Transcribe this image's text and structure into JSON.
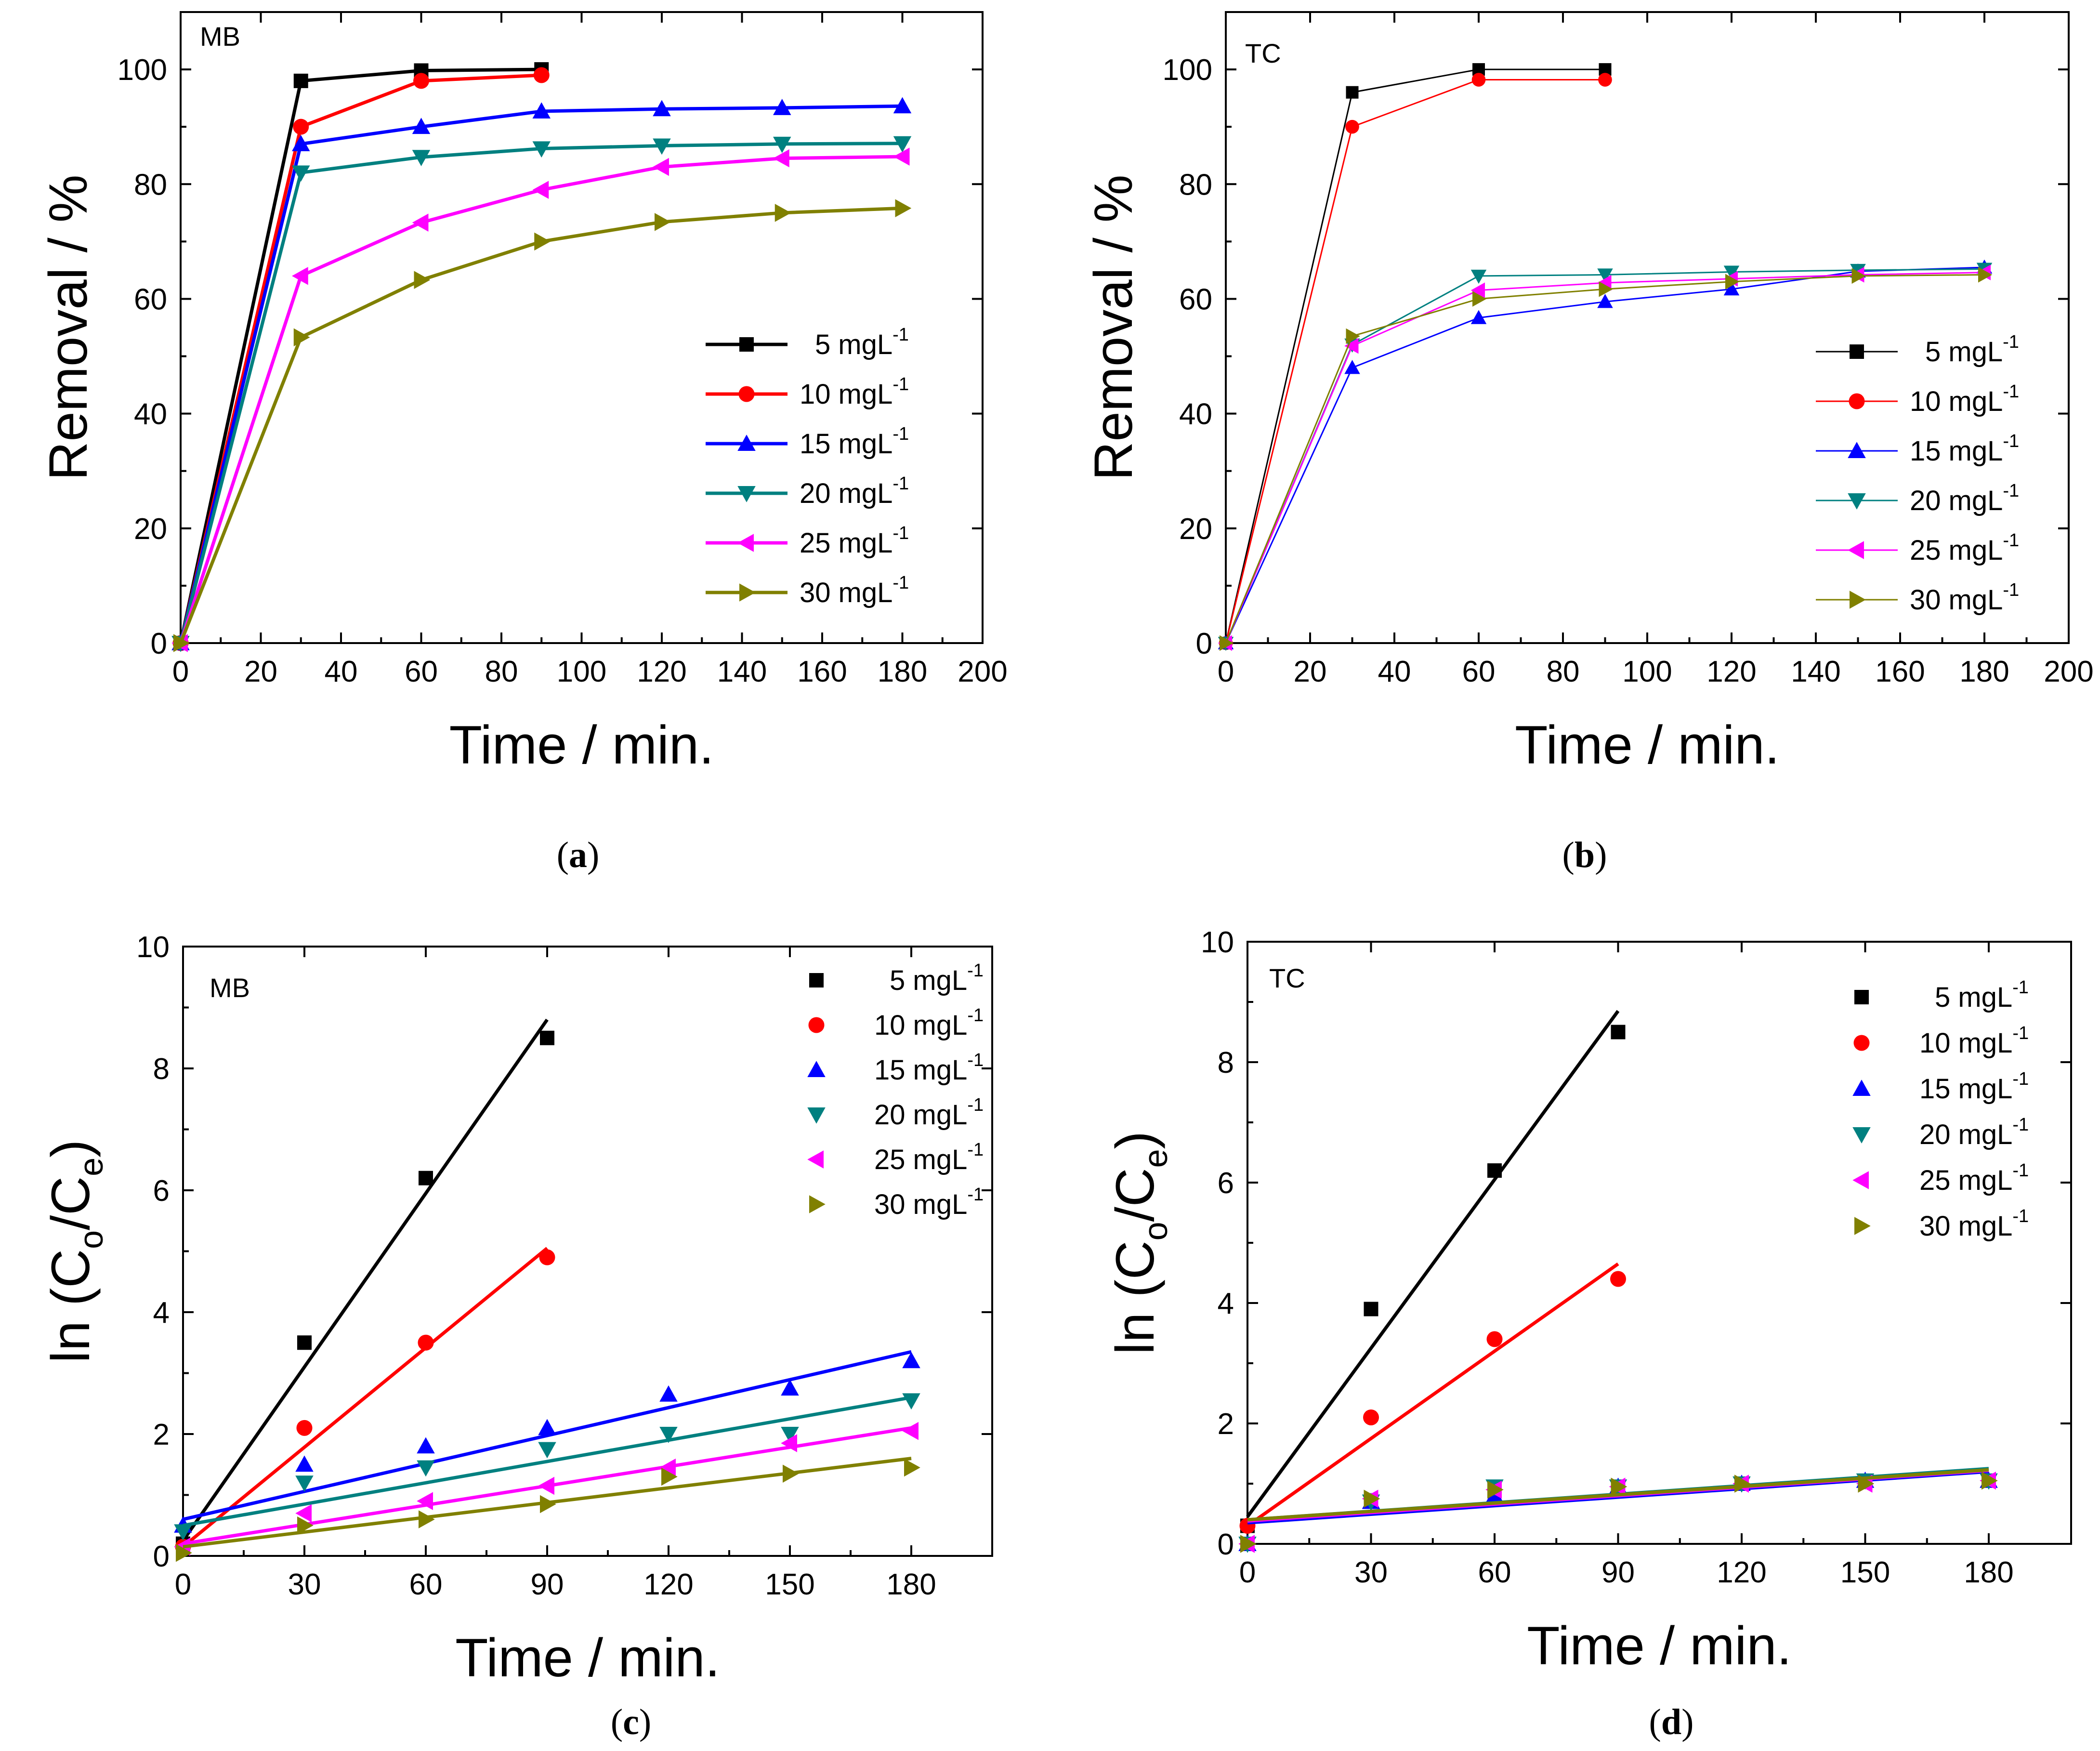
{
  "colors": {
    "5": "#000000",
    "10": "#ff0000",
    "15": "#0000ff",
    "20": "#008080",
    "25": "#ff00ff",
    "30": "#808000"
  },
  "legend_unit": "mgL",
  "legend_exp": "-1",
  "chart_data": [
    {
      "id": "a",
      "type": "line",
      "caption_letter": "a",
      "tag": "MB",
      "xlabel": "Time / min.",
      "ylabel": "Removal / %",
      "xlim": [
        0,
        200
      ],
      "ylim": [
        0,
        110
      ],
      "xticks": [
        0,
        20,
        40,
        60,
        80,
        100,
        120,
        140,
        160,
        180,
        200
      ],
      "yticks": [
        0,
        20,
        40,
        60,
        80,
        100
      ],
      "line_width": "thick",
      "legend_position": "lower-right",
      "series": [
        {
          "name": "5",
          "marker": "square",
          "x": [
            0,
            30,
            60,
            90
          ],
          "y": [
            0,
            98,
            99.8,
            100
          ]
        },
        {
          "name": "10",
          "marker": "circle",
          "x": [
            0,
            30,
            60,
            90
          ],
          "y": [
            0,
            90,
            98,
            99
          ]
        },
        {
          "name": "15",
          "marker": "triangle-up",
          "x": [
            0,
            30,
            60,
            90,
            120,
            150,
            180
          ],
          "y": [
            0,
            87,
            90,
            92.7,
            93.1,
            93.3,
            93.6
          ]
        },
        {
          "name": "20",
          "marker": "triangle-down",
          "x": [
            0,
            30,
            60,
            90,
            120,
            150,
            180
          ],
          "y": [
            0,
            82,
            84.7,
            86.2,
            86.7,
            87,
            87.1
          ]
        },
        {
          "name": "25",
          "marker": "triangle-left",
          "x": [
            0,
            30,
            60,
            90,
            120,
            150,
            180
          ],
          "y": [
            0,
            64,
            73.3,
            79,
            83,
            84.5,
            84.8
          ]
        },
        {
          "name": "30",
          "marker": "triangle-right",
          "x": [
            0,
            30,
            60,
            90,
            120,
            150,
            180
          ],
          "y": [
            0,
            53.3,
            63.3,
            70,
            73.4,
            75,
            75.8
          ]
        }
      ]
    },
    {
      "id": "b",
      "type": "line",
      "caption_letter": "b",
      "tag": "TC",
      "xlabel": "Time / min.",
      "ylabel": "Removal / %",
      "xlim": [
        0,
        200
      ],
      "ylim": [
        0,
        110
      ],
      "xticks": [
        0,
        20,
        40,
        60,
        80,
        100,
        120,
        140,
        160,
        180,
        200
      ],
      "yticks": [
        0,
        20,
        40,
        60,
        80,
        100
      ],
      "line_width": "thin",
      "legend_position": "lower-right",
      "series": [
        {
          "name": "5",
          "marker": "square",
          "x": [
            0,
            30,
            60,
            90
          ],
          "y": [
            0,
            96,
            100,
            100
          ]
        },
        {
          "name": "10",
          "marker": "circle",
          "x": [
            0,
            30,
            60,
            90
          ],
          "y": [
            0,
            90,
            98.2,
            98.2
          ]
        },
        {
          "name": "15",
          "marker": "triangle-up",
          "x": [
            0,
            30,
            60,
            90,
            120,
            150,
            180
          ],
          "y": [
            0,
            48,
            56.7,
            59.5,
            61.7,
            64.8,
            65.5
          ]
        },
        {
          "name": "20",
          "marker": "triangle-down",
          "x": [
            0,
            30,
            60,
            90,
            120,
            150,
            180
          ],
          "y": [
            0,
            52,
            64,
            64.2,
            64.7,
            65,
            65.2
          ]
        },
        {
          "name": "25",
          "marker": "triangle-left",
          "x": [
            0,
            30,
            60,
            90,
            120,
            150,
            180
          ],
          "y": [
            0,
            51.8,
            61.5,
            62.8,
            63.5,
            64.2,
            64.6
          ]
        },
        {
          "name": "30",
          "marker": "triangle-right",
          "x": [
            0,
            30,
            60,
            90,
            120,
            150,
            180
          ],
          "y": [
            0,
            53.5,
            60,
            61.7,
            63,
            64,
            64.2
          ]
        }
      ]
    },
    {
      "id": "c",
      "type": "scatter",
      "caption_letter": "c",
      "tag": "MB",
      "xlabel": "Time / min.",
      "ylabel_main": "ln (C",
      "ylabel_sub1": "o",
      "ylabel_mid": "/C",
      "ylabel_sub2": "e",
      "ylabel_end": ")",
      "xlim": [
        0,
        200
      ],
      "ylim": [
        0,
        10
      ],
      "xticks": [
        0,
        30,
        60,
        90,
        120,
        150,
        180
      ],
      "yticks": [
        0,
        2,
        4,
        6,
        8,
        10
      ],
      "legend_position": "upper-right",
      "series": [
        {
          "name": "5",
          "marker": "square",
          "x": [
            0,
            30,
            60,
            90
          ],
          "y": [
            0.2,
            3.5,
            6.2,
            8.5
          ],
          "fit": [
            [
              0,
              0.25
            ],
            [
              90,
              8.8
            ]
          ]
        },
        {
          "name": "10",
          "marker": "circle",
          "x": [
            0,
            30,
            60,
            90
          ],
          "y": [
            0.15,
            2.1,
            3.5,
            4.9
          ],
          "fit": [
            [
              0,
              0.15
            ],
            [
              90,
              5.05
            ]
          ]
        },
        {
          "name": "15",
          "marker": "triangle-up",
          "x": [
            0,
            30,
            60,
            90,
            120,
            150,
            180
          ],
          "y": [
            0.5,
            1.5,
            1.8,
            2.1,
            2.65,
            2.75,
            3.2
          ],
          "fit": [
            [
              0,
              0.6
            ],
            [
              180,
              3.35
            ]
          ]
        },
        {
          "name": "20",
          "marker": "triangle-down",
          "x": [
            0,
            30,
            60,
            90,
            120,
            150,
            180
          ],
          "y": [
            0.4,
            1.2,
            1.45,
            1.75,
            2.0,
            2.0,
            2.55
          ],
          "fit": [
            [
              0,
              0.5
            ],
            [
              180,
              2.6
            ]
          ]
        },
        {
          "name": "25",
          "marker": "triangle-left",
          "x": [
            0,
            30,
            60,
            90,
            120,
            150,
            180
          ],
          "y": [
            0.15,
            0.7,
            0.9,
            1.15,
            1.45,
            1.85,
            2.05
          ],
          "fit": [
            [
              0,
              0.2
            ],
            [
              180,
              2.1
            ]
          ]
        },
        {
          "name": "30",
          "marker": "triangle-right",
          "x": [
            0,
            30,
            60,
            90,
            120,
            150,
            180
          ],
          "y": [
            0.05,
            0.5,
            0.6,
            0.85,
            1.3,
            1.35,
            1.45
          ],
          "fit": [
            [
              0,
              0.15
            ],
            [
              180,
              1.6
            ]
          ]
        }
      ]
    },
    {
      "id": "d",
      "type": "scatter",
      "caption_letter": "d",
      "tag": "TC",
      "xlabel": "Time / min.",
      "ylabel_main": "ln (C",
      "ylabel_sub1": "o",
      "ylabel_mid": "/C",
      "ylabel_sub2": "e",
      "ylabel_end": ")",
      "xlim": [
        0,
        200
      ],
      "ylim": [
        0,
        10
      ],
      "xticks": [
        0,
        30,
        60,
        90,
        120,
        150,
        180
      ],
      "yticks": [
        0,
        2,
        4,
        6,
        8,
        10
      ],
      "legend_position": "upper-right",
      "series": [
        {
          "name": "5",
          "marker": "square",
          "x": [
            0,
            30,
            60,
            90
          ],
          "y": [
            0.3,
            3.9,
            6.2,
            8.5
          ],
          "fit": [
            [
              0,
              0.45
            ],
            [
              90,
              8.85
            ]
          ]
        },
        {
          "name": "10",
          "marker": "circle",
          "x": [
            0,
            30,
            60,
            90
          ],
          "y": [
            0.3,
            2.1,
            3.4,
            4.4
          ],
          "fit": [
            [
              0,
              0.3
            ],
            [
              90,
              4.65
            ]
          ]
        },
        {
          "name": "15",
          "marker": "triangle-up",
          "x": [
            0,
            30,
            60,
            90,
            120,
            150,
            180
          ],
          "y": [
            0.0,
            0.7,
            0.8,
            0.95,
            1.0,
            1.05,
            1.05
          ],
          "fit": [
            [
              0,
              0.35
            ],
            [
              180,
              1.2
            ]
          ]
        },
        {
          "name": "20",
          "marker": "triangle-down",
          "x": [
            0,
            30,
            60,
            90,
            120,
            150,
            180
          ],
          "y": [
            0.0,
            0.7,
            0.95,
            0.95,
            1.0,
            1.05,
            1.05
          ],
          "fit": [
            [
              0,
              0.4
            ],
            [
              180,
              1.25
            ]
          ]
        },
        {
          "name": "25",
          "marker": "triangle-left",
          "x": [
            0,
            30,
            60,
            90,
            120,
            150,
            180
          ],
          "y": [
            0.0,
            0.75,
            0.9,
            0.95,
            1.0,
            1.0,
            1.05
          ],
          "fit": [
            [
              0,
              0.38
            ],
            [
              180,
              1.22
            ]
          ]
        },
        {
          "name": "30",
          "marker": "triangle-right",
          "x": [
            0,
            30,
            60,
            90,
            120,
            150,
            180
          ],
          "y": [
            0.0,
            0.75,
            0.9,
            0.95,
            1.0,
            1.0,
            1.05
          ],
          "fit": [
            [
              0,
              0.4
            ],
            [
              180,
              1.23
            ]
          ]
        }
      ]
    }
  ]
}
